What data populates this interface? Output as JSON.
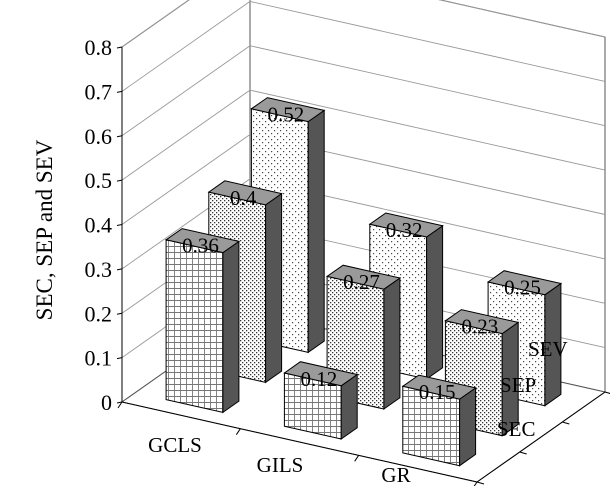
{
  "chart_data": {
    "type": "bar",
    "subtype": "3d-grouped-column",
    "title": "",
    "xlabel": "",
    "ylabel": "SEC, SEP and SEV",
    "ylim": [
      0,
      0.8
    ],
    "yticks": [
      "0",
      "0.1",
      "0.2",
      "0.3",
      "0.4",
      "0.5",
      "0.6",
      "0.7",
      "0.8"
    ],
    "categories": [
      "GCLS",
      "GILS",
      "GR"
    ],
    "series": [
      {
        "name": "SEC",
        "values": [
          0.36,
          0.12,
          0.15
        ],
        "labels": [
          "0.36",
          "0.12",
          "0.15"
        ]
      },
      {
        "name": "SEP",
        "values": [
          0.4,
          0.27,
          0.23
        ],
        "labels": [
          "0.4",
          "0.27",
          "0.23"
        ]
      },
      {
        "name": "SEV",
        "values": [
          0.52,
          0.32,
          0.25
        ],
        "labels": [
          "0.52",
          "0.32",
          "0.25"
        ]
      }
    ],
    "grid": true,
    "legend": "depth-axis-labels"
  }
}
